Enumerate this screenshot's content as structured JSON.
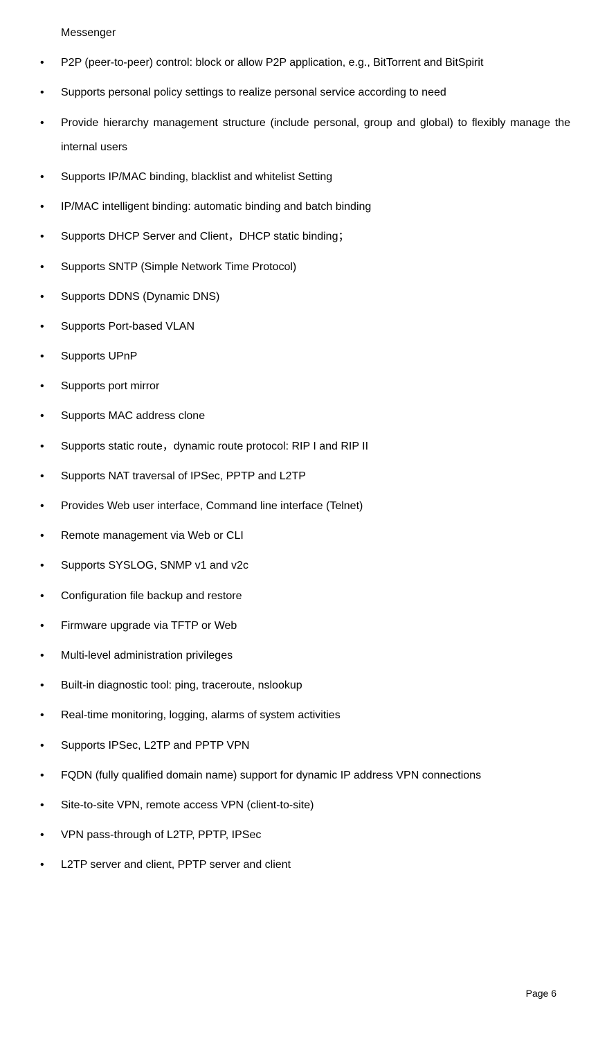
{
  "firstLine": "Messenger",
  "items": [
    "P2P (peer-to-peer) control: block or allow P2P application, e.g., BitTorrent and BitSpirit",
    "Supports personal policy settings to realize personal service according to need",
    "Provide hierarchy management structure (include personal, group and global) to flexibly manage the internal users",
    "Supports IP/MAC binding, blacklist and whitelist Setting",
    "IP/MAC intelligent binding: automatic binding and batch binding",
    "Supports DHCP Server and Client，DHCP static binding；",
    "Supports SNTP (Simple Network Time Protocol)",
    "Supports DDNS (Dynamic DNS)",
    "Supports Port-based VLAN",
    "Supports UPnP",
    "Supports port mirror",
    "Supports MAC address clone",
    "Supports static route，dynamic route protocol: RIP I and RIP II",
    "Supports NAT traversal of IPSec, PPTP and L2TP",
    "Provides Web user interface, Command line interface (Telnet)",
    "Remote management via Web or CLI",
    "Supports SYSLOG, SNMP v1 and v2c",
    "Configuration file backup and restore",
    "Firmware upgrade via TFTP or Web",
    "Multi-level administration privileges",
    "Built-in diagnostic tool: ping, traceroute, nslookup",
    "Real-time monitoring, logging, alarms of system activities",
    "Supports IPSec, L2TP and PPTP VPN",
    "FQDN (fully qualified domain name) support for dynamic IP address VPN connections",
    "Site-to-site VPN, remote access VPN (client-to-site)",
    "VPN pass-through of L2TP, PPTP, IPSec",
    "L2TP server and client, PPTP server and client"
  ],
  "pageLabel": "Page 6"
}
